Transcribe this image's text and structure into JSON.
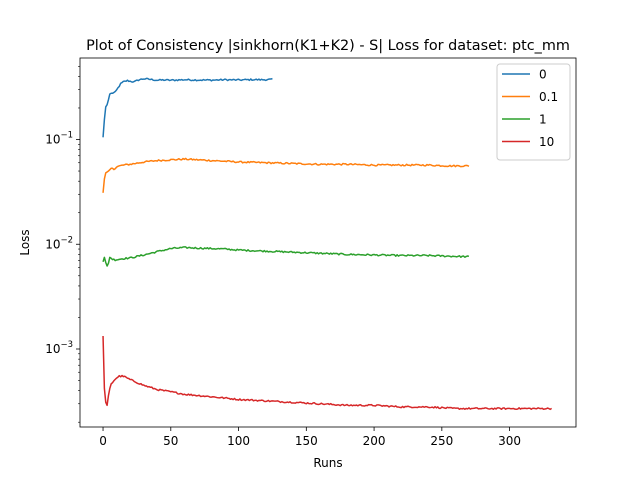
{
  "chart_data": {
    "type": "line",
    "title": "Plot of Consistency |sinkhorn(K1+K2) - S| Loss for dataset: ptc_mm",
    "xlabel": "Runs",
    "ylabel": "Loss",
    "xlim": [
      -17,
      349
    ],
    "ylim": [
      0.00018,
      0.6
    ],
    "yscale": "log",
    "x_ticks": [
      0,
      50,
      100,
      150,
      200,
      250,
      300
    ],
    "y_ticks": [
      0.001,
      0.01,
      0.1
    ],
    "y_tick_labels": [
      {
        "base": "10",
        "exp": "−3"
      },
      {
        "base": "10",
        "exp": "−2"
      },
      {
        "base": "10",
        "exp": "−1"
      }
    ],
    "grid": false,
    "legend_position": "top-right",
    "series": [
      {
        "name": "0",
        "color": "#1f77b4",
        "n": 126,
        "points": [
          [
            0,
            0.105
          ],
          [
            1,
            0.155
          ],
          [
            2,
            0.205
          ],
          [
            3,
            0.215
          ],
          [
            4,
            0.24
          ],
          [
            5,
            0.272
          ],
          [
            7,
            0.278
          ],
          [
            9,
            0.282
          ],
          [
            11,
            0.31
          ],
          [
            13,
            0.34
          ],
          [
            15,
            0.355
          ],
          [
            18,
            0.365
          ],
          [
            20,
            0.36
          ],
          [
            23,
            0.355
          ],
          [
            26,
            0.37
          ],
          [
            30,
            0.38
          ],
          [
            35,
            0.375
          ],
          [
            40,
            0.368
          ],
          [
            45,
            0.37
          ],
          [
            50,
            0.368
          ],
          [
            60,
            0.372
          ],
          [
            70,
            0.37
          ],
          [
            80,
            0.369
          ],
          [
            90,
            0.372
          ],
          [
            100,
            0.37
          ],
          [
            110,
            0.373
          ],
          [
            118,
            0.372
          ],
          [
            125,
            0.375
          ]
        ]
      },
      {
        "name": "0.1",
        "color": "#ff7f0e",
        "n": 271,
        "points": [
          [
            0,
            0.031
          ],
          [
            1,
            0.042
          ],
          [
            2,
            0.048
          ],
          [
            3,
            0.049
          ],
          [
            4,
            0.05
          ],
          [
            6,
            0.053
          ],
          [
            8,
            0.052
          ],
          [
            10,
            0.055
          ],
          [
            15,
            0.057
          ],
          [
            20,
            0.058
          ],
          [
            30,
            0.061
          ],
          [
            40,
            0.063
          ],
          [
            50,
            0.064
          ],
          [
            60,
            0.065
          ],
          [
            70,
            0.064
          ],
          [
            80,
            0.063
          ],
          [
            90,
            0.062
          ],
          [
            100,
            0.061
          ],
          [
            120,
            0.06
          ],
          [
            140,
            0.059
          ],
          [
            160,
            0.058
          ],
          [
            180,
            0.058
          ],
          [
            200,
            0.057
          ],
          [
            220,
            0.057
          ],
          [
            240,
            0.057
          ],
          [
            255,
            0.056
          ],
          [
            270,
            0.056
          ]
        ]
      },
      {
        "name": "1",
        "color": "#2ca02c",
        "n": 271,
        "points": [
          [
            0,
            0.0068
          ],
          [
            1,
            0.0075
          ],
          [
            2,
            0.0067
          ],
          [
            3,
            0.0062
          ],
          [
            4,
            0.0066
          ],
          [
            5,
            0.0075
          ],
          [
            7,
            0.0072
          ],
          [
            9,
            0.0071
          ],
          [
            12,
            0.0072
          ],
          [
            15,
            0.0073
          ],
          [
            20,
            0.0074
          ],
          [
            30,
            0.0079
          ],
          [
            40,
            0.0085
          ],
          [
            50,
            0.0091
          ],
          [
            60,
            0.0093
          ],
          [
            70,
            0.0092
          ],
          [
            80,
            0.0091
          ],
          [
            90,
            0.009
          ],
          [
            100,
            0.0088
          ],
          [
            120,
            0.0086
          ],
          [
            140,
            0.0084
          ],
          [
            160,
            0.0082
          ],
          [
            180,
            0.008
          ],
          [
            200,
            0.0079
          ],
          [
            220,
            0.0078
          ],
          [
            240,
            0.0078
          ],
          [
            255,
            0.0077
          ],
          [
            270,
            0.0076
          ]
        ]
      },
      {
        "name": "10",
        "color": "#d62728",
        "n": 332,
        "points": [
          [
            0,
            0.00133
          ],
          [
            1,
            0.00042
          ],
          [
            2,
            0.00031
          ],
          [
            3,
            0.00029
          ],
          [
            4,
            0.00036
          ],
          [
            5,
            0.00042
          ],
          [
            6,
            0.00046
          ],
          [
            8,
            0.0005
          ],
          [
            10,
            0.00053
          ],
          [
            12,
            0.00055
          ],
          [
            15,
            0.00055
          ],
          [
            20,
            0.00051
          ],
          [
            25,
            0.00048
          ],
          [
            30,
            0.00045
          ],
          [
            40,
            0.00041
          ],
          [
            50,
            0.00039
          ],
          [
            60,
            0.00037
          ],
          [
            70,
            0.00036
          ],
          [
            80,
            0.00035
          ],
          [
            90,
            0.00034
          ],
          [
            100,
            0.00033
          ],
          [
            120,
            0.00032
          ],
          [
            140,
            0.00031
          ],
          [
            160,
            0.0003
          ],
          [
            180,
            0.00029
          ],
          [
            200,
            0.00029
          ],
          [
            220,
            0.00028
          ],
          [
            240,
            0.00028
          ],
          [
            260,
            0.00027
          ],
          [
            280,
            0.00027
          ],
          [
            300,
            0.00027
          ],
          [
            320,
            0.00027
          ],
          [
            331,
            0.00027
          ]
        ]
      }
    ]
  }
}
